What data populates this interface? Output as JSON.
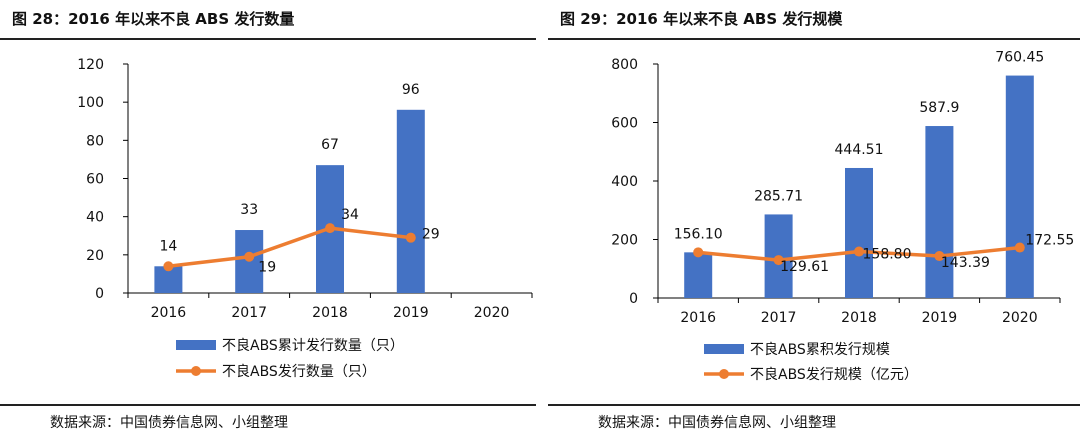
{
  "colors": {
    "bar": "#4472C4",
    "line": "#ED7D31",
    "axis": "#000000",
    "text": "#111111"
  },
  "chart_data": [
    {
      "type": "bar",
      "title": "图 28：2016 年以来不良 ABS 发行数量",
      "categories": [
        "2016",
        "2017",
        "2018",
        "2019",
        "2020"
      ],
      "ylim": [
        0,
        120
      ],
      "yticks": [
        0,
        20,
        40,
        60,
        80,
        100,
        120
      ],
      "grid": false,
      "legend_position": "bottom",
      "series": [
        {
          "name": "不良ABS累计发行数量（只）",
          "type": "bar",
          "values": [
            14,
            33,
            67,
            96,
            null
          ],
          "labels": [
            "14",
            "33",
            "67",
            "96",
            ""
          ]
        },
        {
          "name": "不良ABS发行数量（只）",
          "type": "line",
          "values": [
            14,
            19,
            34,
            29,
            null
          ],
          "labels": [
            "",
            "19",
            "34",
            "29",
            ""
          ]
        }
      ],
      "source": "数据来源：中国债券信息网、小组整理"
    },
    {
      "type": "bar",
      "title": "图 29：2016 年以来不良 ABS 发行规模",
      "categories": [
        "2016",
        "2017",
        "2018",
        "2019",
        "2020"
      ],
      "ylim": [
        0,
        800
      ],
      "yticks": [
        0,
        200,
        400,
        600,
        800
      ],
      "grid": false,
      "legend_position": "bottom",
      "series": [
        {
          "name": "不良ABS累积发行规模",
          "type": "bar",
          "values": [
            156.1,
            285.71,
            444.51,
            587.9,
            760.45
          ],
          "labels": [
            "156.10",
            "285.71",
            "444.51",
            "587.9",
            "760.45"
          ]
        },
        {
          "name": "不良ABS发行规模（亿元）",
          "type": "line",
          "values": [
            156.1,
            129.61,
            158.8,
            143.39,
            172.55
          ],
          "labels": [
            "",
            "129.61",
            "158.80",
            "143.39",
            "172.55"
          ]
        }
      ],
      "source": "数据来源：中国债券信息网、小组整理"
    }
  ]
}
